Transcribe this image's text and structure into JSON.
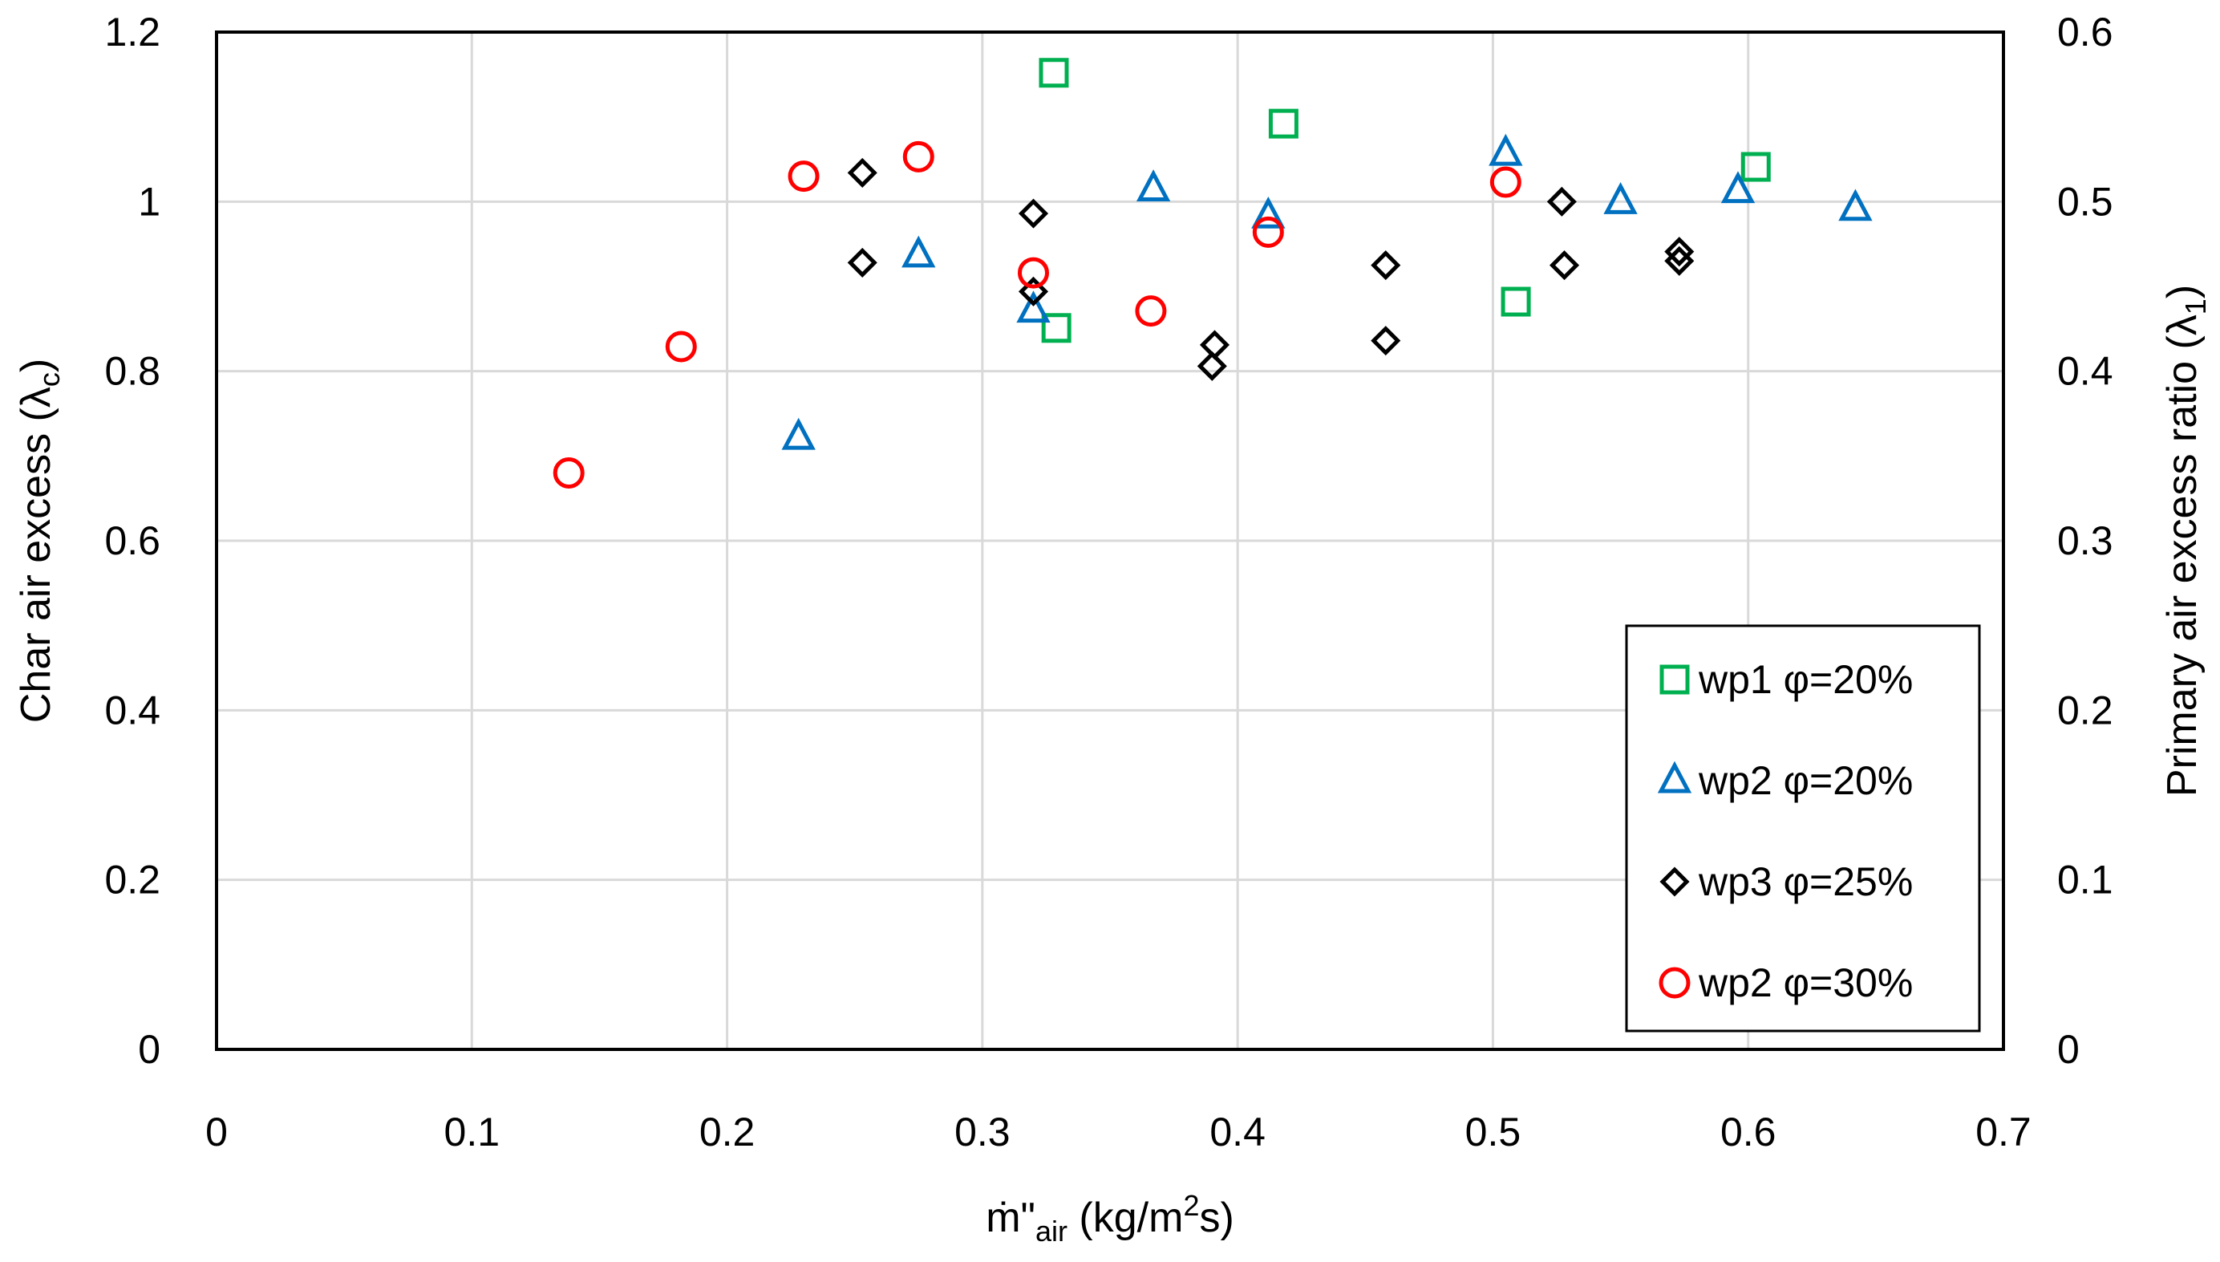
{
  "chart_data": {
    "type": "scatter",
    "title": "",
    "xlabel": {
      "main": "ṁ\"",
      "sub": "air",
      "rest": " (kg/m",
      "sup": "2",
      "end": "s)"
    },
    "ylabel_left": {
      "main": "Char air excess (λ",
      "sub": "c",
      "end": ")"
    },
    "ylabel_right": {
      "main": "Primary air excess ratio (λ",
      "sub": "1",
      "end": ")"
    },
    "xlim": [
      0,
      0.7
    ],
    "ylim_left": [
      0,
      1.2
    ],
    "ylim_right": [
      0,
      0.6
    ],
    "grid": true,
    "legend_position": "bottom-right",
    "x_ticks": [
      "0",
      "0.1",
      "0.2",
      "0.3",
      "0.4",
      "0.5",
      "0.6",
      "0.7"
    ],
    "y_left_ticks": [
      "0",
      "0.2",
      "0.4",
      "0.6",
      "0.8",
      "1",
      "1.2"
    ],
    "y_right_ticks": [
      "0",
      "0.1",
      "0.2",
      "0.3",
      "0.4",
      "0.5",
      "0.6"
    ],
    "series": [
      {
        "name": "wp1 φ=20%",
        "marker": "square",
        "color": "#00b050",
        "points": [
          [
            0.328,
            1.152
          ],
          [
            0.329,
            0.851
          ],
          [
            0.418,
            1.092
          ],
          [
            0.509,
            0.882
          ],
          [
            0.603,
            1.041
          ]
        ]
      },
      {
        "name": "wp2 φ=20%",
        "marker": "triangle",
        "color": "#0070c0",
        "points": [
          [
            0.228,
            0.722
          ],
          [
            0.275,
            0.937
          ],
          [
            0.32,
            0.872
          ],
          [
            0.367,
            1.015
          ],
          [
            0.412,
            0.983
          ],
          [
            0.505,
            1.057
          ],
          [
            0.55,
            1.0
          ],
          [
            0.596,
            1.013
          ],
          [
            0.642,
            0.992
          ]
        ]
      },
      {
        "name": "wp3 φ=25%",
        "marker": "diamond",
        "color": "#000000",
        "points": [
          [
            0.253,
            1.034
          ],
          [
            0.253,
            0.928
          ],
          [
            0.32,
            0.986
          ],
          [
            0.32,
            0.894
          ],
          [
            0.39,
            0.806
          ],
          [
            0.391,
            0.831
          ],
          [
            0.458,
            0.925
          ],
          [
            0.458,
            0.836
          ],
          [
            0.527,
            1.0
          ],
          [
            0.528,
            0.925
          ],
          [
            0.573,
            0.941
          ],
          [
            0.573,
            0.93
          ]
        ]
      },
      {
        "name": "wp2 φ=30%",
        "marker": "circle",
        "color": "#ff0000",
        "points": [
          [
            0.138,
            0.68
          ],
          [
            0.182,
            0.829
          ],
          [
            0.23,
            1.03
          ],
          [
            0.275,
            1.053
          ],
          [
            0.32,
            0.916
          ],
          [
            0.366,
            0.871
          ],
          [
            0.412,
            0.964
          ],
          [
            0.505,
            1.023
          ]
        ]
      }
    ]
  }
}
